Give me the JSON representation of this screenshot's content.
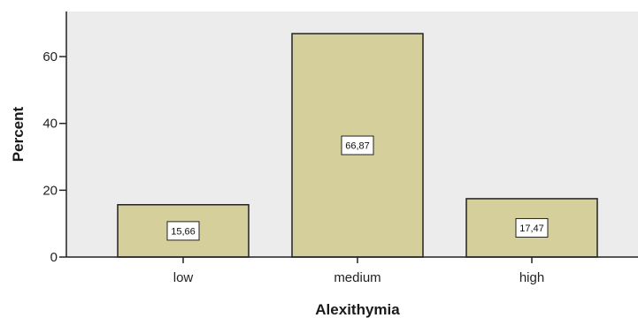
{
  "chart_data": {
    "type": "bar",
    "categories": [
      "low",
      "medium",
      "high"
    ],
    "values": [
      15.66,
      66.87,
      17.47
    ],
    "data_labels": [
      "15,66",
      "66,87",
      "17,47"
    ],
    "xlabel": "Alexithymia",
    "ylabel": "Percent",
    "ylim": [
      0,
      73.5
    ],
    "yticks": [
      "0",
      "20",
      "40",
      "60"
    ],
    "grid": false,
    "legend": "none"
  },
  "colors": {
    "plot_background": "#ececec",
    "bar_fill": "#d4cf9b",
    "bar_stroke": "#222222",
    "label_box_fill": "#ffffff"
  }
}
